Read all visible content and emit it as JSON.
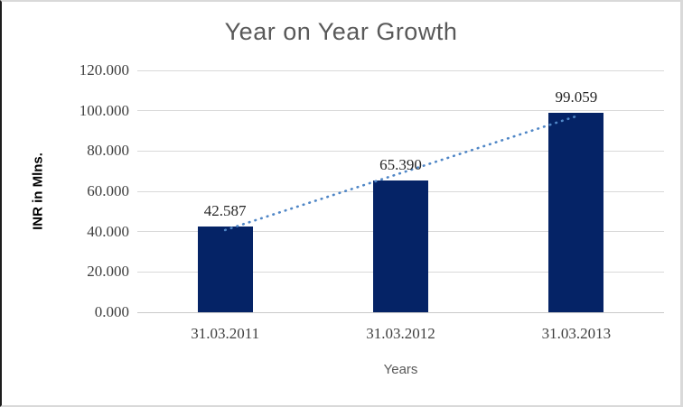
{
  "chart_data": {
    "type": "bar",
    "title": "Year on Year Growth",
    "categories": [
      "31.03.2011",
      "31.03.2012",
      "31.03.2013"
    ],
    "values": [
      42.587,
      65.39,
      99.059
    ],
    "data_labels": [
      "42.587",
      "65.390",
      "99.059"
    ],
    "xlabel": "Years",
    "ylabel": "INR in Mlns.",
    "ylim": [
      0,
      120
    ],
    "ytick_step": 20,
    "ytick_labels": [
      "0.000",
      "20.000",
      "40.000",
      "60.000",
      "80.000",
      "100.000",
      "120.000"
    ],
    "grid": "horizontal",
    "legend": "none",
    "bar_color": "#052366",
    "trendline": {
      "type": "linear",
      "style": "dotted",
      "color": "#4f86c6"
    },
    "colors": {
      "title_text": "#595959",
      "tick_text": "#3f3f3f",
      "data_label_text": "#262626",
      "gridline": "#d9d9d9",
      "axis_title_text": "#000000"
    }
  }
}
